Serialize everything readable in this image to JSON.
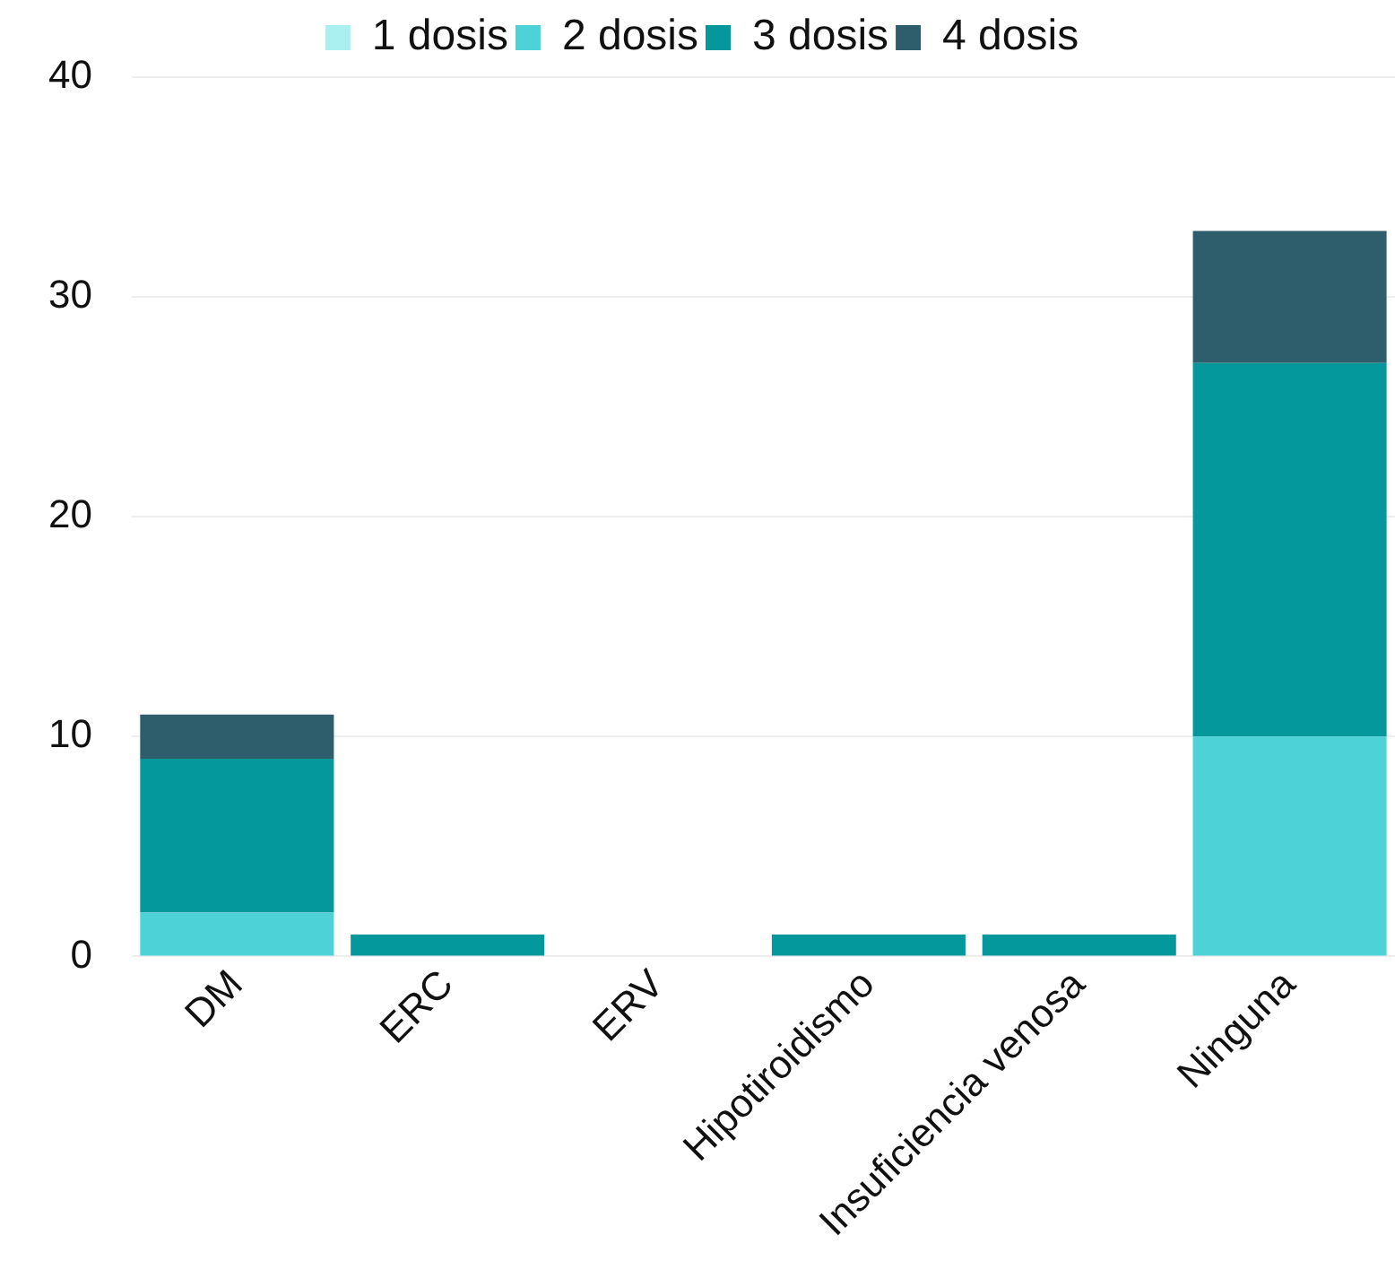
{
  "chart_data": {
    "type": "bar",
    "stacked": true,
    "categories": [
      "DM",
      "ERC",
      "ERV",
      "Hipotiroidismo",
      "Insuficiencia venosa",
      "Ninguna"
    ],
    "series": [
      {
        "name": "1 dosis",
        "color": "#aaf0f0",
        "values": [
          0,
          0,
          0,
          0,
          0,
          0
        ]
      },
      {
        "name": "2 dosis",
        "color": "#4dd2d8",
        "values": [
          2,
          0,
          0,
          0,
          0,
          10
        ]
      },
      {
        "name": "3 dosis",
        "color": "#04979c",
        "values": [
          7,
          1,
          0,
          1,
          1,
          17
        ]
      },
      {
        "name": "4 dosis",
        "color": "#2e5e6b",
        "values": [
          2,
          0,
          0,
          0,
          0,
          6
        ]
      }
    ],
    "ylim": [
      0,
      40
    ],
    "yticks": [
      0,
      10,
      20,
      30,
      40
    ],
    "grid": "y",
    "legend": "top"
  }
}
